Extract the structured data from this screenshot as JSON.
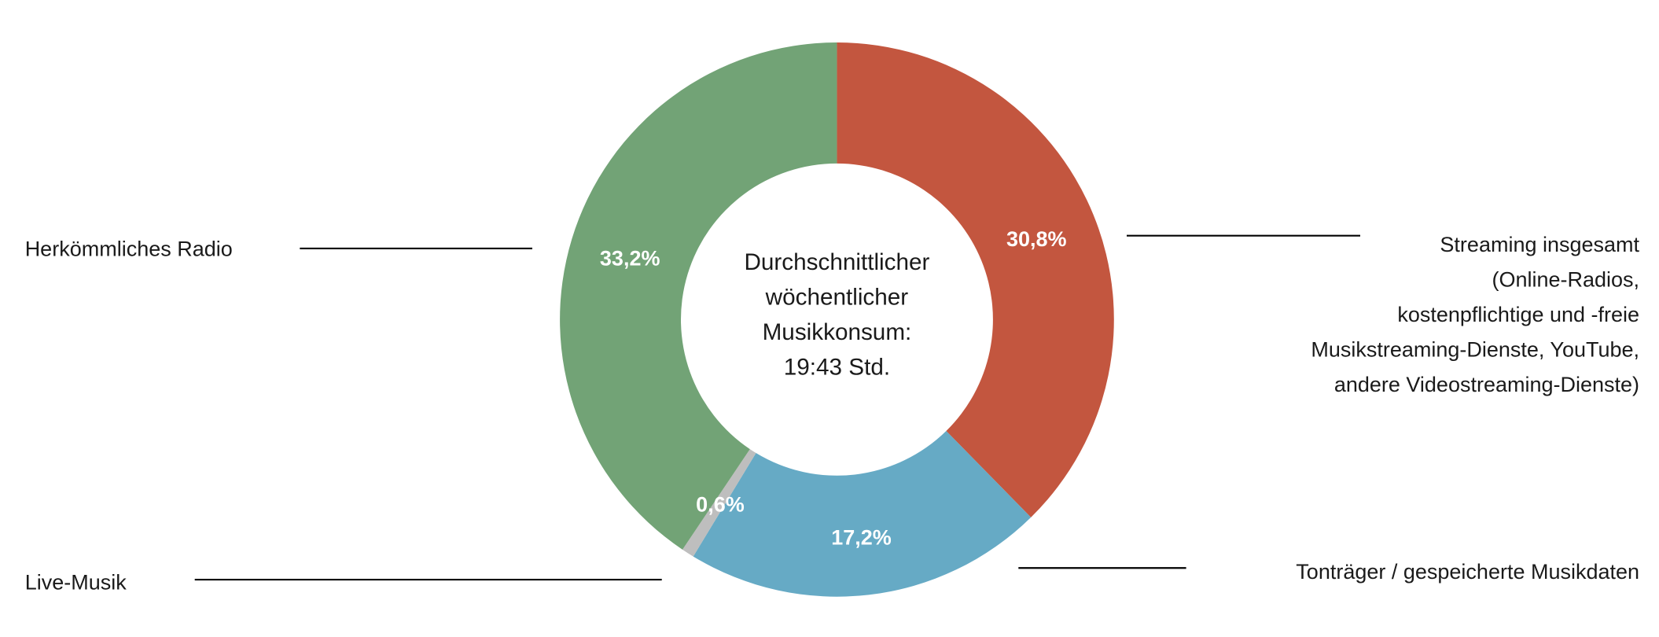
{
  "chart_data": {
    "type": "pie",
    "variant": "donut",
    "center_label": [
      "Durchschnittlicher",
      "wöchentlicher",
      "Musikkonsum:",
      "19:43 Std."
    ],
    "slices": [
      {
        "name": "Streaming insgesamt (Online-Radios, kostenpflichtige und -freie Musikstreaming-Dienste, YouTube, andere Videostreaming-Dienste)",
        "label_lines": [
          "Streaming insgesamt",
          "(Online-Radios,",
          "kostenpflichtige und -freie",
          "Musikstreaming-Dienste, YouTube,",
          "andere Videostreaming-Dienste)"
        ],
        "value": 30.8,
        "value_label": "30,8%",
        "color": "#C3563F"
      },
      {
        "name": "Tonträger / gespeicherte Musikdaten",
        "label_lines": [
          "Tonträger / gespeicherte Musikdaten"
        ],
        "value": 17.2,
        "value_label": "17,2%",
        "color": "#66AAC5"
      },
      {
        "name": "Live-Musik",
        "label_lines": [
          "Live-Musik"
        ],
        "value": 0.6,
        "value_label": "0,6%",
        "color": "#BEBEBE"
      },
      {
        "name": "Herkömmliches Radio",
        "label_lines": [
          "Herkömmliches Radio"
        ],
        "value": 33.2,
        "value_label": "33,2%",
        "color": "#72A376"
      }
    ],
    "start_angle": "top",
    "direction": "clockwise",
    "legend": "none"
  }
}
